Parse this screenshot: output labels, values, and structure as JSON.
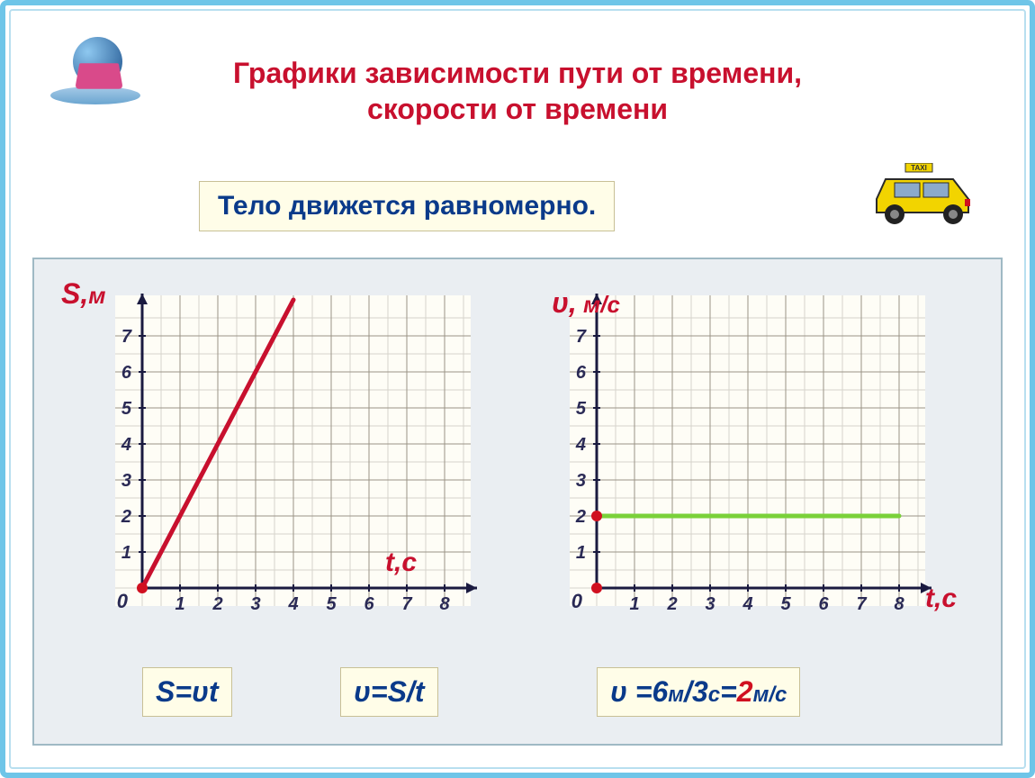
{
  "title_line1": "Графики зависимости пути от времени,",
  "title_line2": "скорости от времени",
  "subtitle": "Тело движется равномерно.",
  "chart_left": {
    "type": "line",
    "y_label": "S,",
    "y_label_unit": "м",
    "x_label": "t,с",
    "x_ticks": [
      1,
      2,
      3,
      4,
      5,
      6,
      7,
      8
    ],
    "y_ticks": [
      1,
      2,
      3,
      4,
      5,
      6,
      7
    ],
    "xlim": [
      0,
      8.5
    ],
    "ylim": [
      0,
      7.8
    ],
    "minor_grid_color": "#d6d3cc",
    "grid_color": "#9a9486",
    "axis_color": "#1a1a40",
    "bg_color": "#fefdf6",
    "series": {
      "points": [
        [
          0,
          0
        ],
        [
          4,
          8
        ]
      ],
      "color": "#c8102e",
      "width": 5,
      "marker_color": "#d01020",
      "marker_r": 6
    },
    "formula1": "S=υt",
    "formula2": "υ=S/t"
  },
  "chart_right": {
    "type": "line",
    "y_label": "υ,",
    "y_label_unit": " м/с",
    "x_label": "t,с",
    "x_ticks": [
      1,
      2,
      3,
      4,
      5,
      6,
      7,
      8
    ],
    "y_ticks": [
      1,
      2,
      3,
      4,
      5,
      6,
      7
    ],
    "xlim": [
      0,
      8.5
    ],
    "ylim": [
      0,
      7.8
    ],
    "minor_grid_color": "#d6d3cc",
    "grid_color": "#9a9486",
    "axis_color": "#1a1a40",
    "bg_color": "#fefdf6",
    "series": {
      "points": [
        [
          0,
          2
        ],
        [
          8,
          2
        ]
      ],
      "color": "#7ad13a",
      "width": 5,
      "marker_color": "#d01020",
      "marker_r": 6
    },
    "formula_prefix": "υ =6",
    "formula_m": "м",
    "formula_mid": "/3",
    "formula_s": "с",
    "formula_eq": "=",
    "formula_result": "2",
    "formula_ms": "м/с"
  }
}
